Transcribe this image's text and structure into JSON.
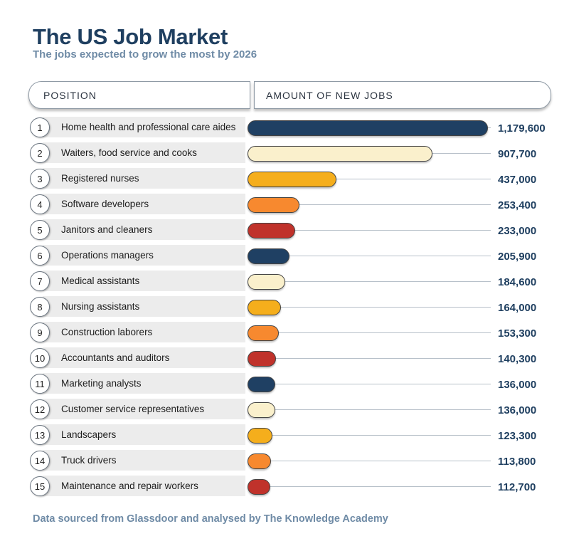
{
  "title": "The US Job Market",
  "subtitle": "The jobs expected to grow the most by 2026",
  "headers": {
    "position": "POSITION",
    "amount": "AMOUNT OF NEW JOBS"
  },
  "footer": "Data sourced from Glassdoor and analysed by The Knowledge Academy",
  "colors": {
    "navy": "#1f4063",
    "cream": "#faf0cc",
    "gold": "#f5ae1c",
    "orange": "#f7892f",
    "red": "#c0322b"
  },
  "chart_data": {
    "type": "bar",
    "orientation": "horizontal",
    "title": "The US Job Market",
    "subtitle": "The jobs expected to grow the most by 2026",
    "xlabel": "AMOUNT OF NEW JOBS",
    "ylabel": "POSITION",
    "xlim": [
      0,
      1179600
    ],
    "rows": [
      {
        "rank": "1",
        "position": "Home health and professional care aides",
        "value": 1179600,
        "value_label": "1,179,600",
        "color": "navy"
      },
      {
        "rank": "2",
        "position": "Waiters, food service and cooks",
        "value": 907700,
        "value_label": "907,700",
        "color": "cream"
      },
      {
        "rank": "3",
        "position": "Registered nurses",
        "value": 437000,
        "value_label": "437,000",
        "color": "gold"
      },
      {
        "rank": "4",
        "position": "Software developers",
        "value": 253400,
        "value_label": "253,400",
        "color": "orange"
      },
      {
        "rank": "5",
        "position": "Janitors and cleaners",
        "value": 233000,
        "value_label": "233,000",
        "color": "red"
      },
      {
        "rank": "6",
        "position": "Operations managers",
        "value": 205900,
        "value_label": "205,900",
        "color": "navy"
      },
      {
        "rank": "7",
        "position": "Medical assistants",
        "value": 184600,
        "value_label": "184,600",
        "color": "cream"
      },
      {
        "rank": "8",
        "position": "Nursing assistants",
        "value": 164000,
        "value_label": "164,000",
        "color": "gold"
      },
      {
        "rank": "9",
        "position": "Construction laborers",
        "value": 153300,
        "value_label": "153,300",
        "color": "orange"
      },
      {
        "rank": "10",
        "position": "Accountants and auditors",
        "value": 140300,
        "value_label": "140,300",
        "color": "red"
      },
      {
        "rank": "11",
        "position": "Marketing analysts",
        "value": 136000,
        "value_label": "136,000",
        "color": "navy"
      },
      {
        "rank": "12",
        "position": "Customer service representatives",
        "value": 136000,
        "value_label": "136,000",
        "color": "cream"
      },
      {
        "rank": "13",
        "position": "Landscapers",
        "value": 123300,
        "value_label": "123,300",
        "color": "gold"
      },
      {
        "rank": "14",
        "position": "Truck drivers",
        "value": 113800,
        "value_label": "113,800",
        "color": "orange"
      },
      {
        "rank": "15",
        "position": "Maintenance and repair workers",
        "value": 112700,
        "value_label": "112,700",
        "color": "red"
      }
    ]
  }
}
